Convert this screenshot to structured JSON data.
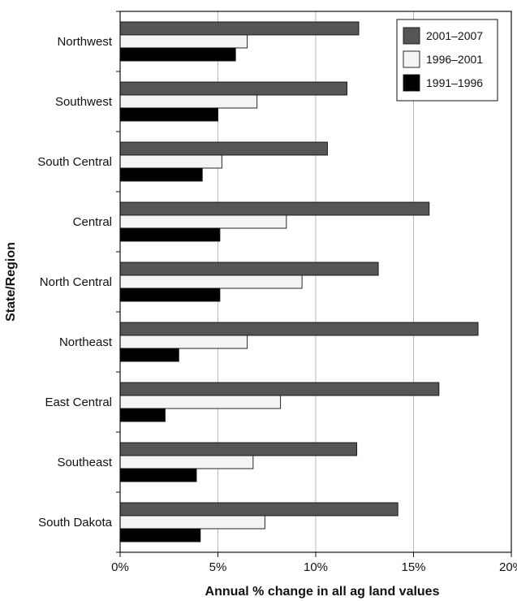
{
  "chart_data": {
    "type": "bar",
    "orientation": "horizontal",
    "xlabel": "Annual % change in all ag land values",
    "ylabel": "State/Region",
    "xlim": [
      0,
      20
    ],
    "x_ticks": [
      0,
      5,
      10,
      15,
      20
    ],
    "x_tick_labels": [
      "0%",
      "5%",
      "10%",
      "15%",
      "20%"
    ],
    "grid": "vertical",
    "legend_position": "top-right",
    "categories": [
      "Northwest",
      "Southwest",
      "South Central",
      "Central",
      "North Central",
      "Northeast",
      "East Central",
      "Southeast",
      "South Dakota"
    ],
    "series": [
      {
        "name": "2001–2007",
        "color": "#555555",
        "values": [
          12.2,
          11.6,
          10.6,
          15.8,
          13.2,
          18.3,
          16.3,
          12.1,
          14.2
        ]
      },
      {
        "name": "1996–2001",
        "color": "#f4f4f4",
        "values": [
          6.5,
          7.0,
          5.2,
          8.5,
          9.3,
          6.5,
          8.2,
          6.8,
          7.4
        ]
      },
      {
        "name": "1991–1996",
        "color": "#000000",
        "values": [
          5.9,
          5.0,
          4.2,
          5.1,
          5.1,
          3.0,
          2.3,
          3.9,
          4.1
        ]
      }
    ]
  }
}
